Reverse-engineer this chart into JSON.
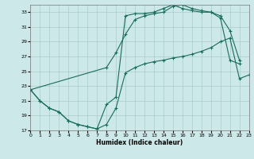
{
  "xlabel": "Humidex (Indice chaleur)",
  "bg_color": "#cce8e8",
  "grid_color": "#aacccc",
  "line_color": "#1a6b5a",
  "xlim": [
    0,
    23
  ],
  "ylim": [
    17,
    34
  ],
  "xticks": [
    0,
    1,
    2,
    3,
    4,
    5,
    6,
    7,
    8,
    9,
    10,
    11,
    12,
    13,
    14,
    15,
    16,
    17,
    18,
    19,
    20,
    21,
    22,
    23
  ],
  "yticks": [
    17,
    19,
    21,
    23,
    25,
    27,
    29,
    31,
    33
  ],
  "line1_x": [
    0,
    1,
    2,
    3,
    4,
    5,
    6,
    7,
    8,
    9,
    10,
    11,
    12,
    13,
    14,
    15,
    16,
    17,
    18,
    19,
    20,
    21,
    22,
    23
  ],
  "line1_y": [
    22.5,
    21.0,
    20.0,
    19.5,
    18.3,
    17.8,
    17.5,
    17.2,
    17.8,
    20.0,
    24.8,
    25.5,
    26.0,
    26.3,
    26.5,
    26.8,
    27.0,
    27.3,
    27.7,
    28.2,
    29.0,
    29.5,
    24.0,
    24.5
  ],
  "line2_x": [
    0,
    1,
    2,
    3,
    4,
    5,
    6,
    7,
    8,
    9,
    10,
    11,
    12,
    13,
    14,
    15,
    16,
    17,
    18,
    19,
    20,
    21,
    22
  ],
  "line2_y": [
    22.5,
    21.0,
    20.0,
    19.5,
    18.3,
    17.8,
    17.5,
    17.2,
    20.5,
    21.5,
    32.5,
    32.8,
    32.8,
    33.0,
    33.5,
    34.0,
    33.5,
    33.2,
    33.0,
    33.0,
    32.2,
    26.5,
    26.0
  ],
  "line3_x": [
    0,
    8,
    9,
    10,
    11,
    12,
    13,
    14,
    15,
    16,
    17,
    18,
    19,
    20,
    21,
    22
  ],
  "line3_y": [
    22.5,
    25.5,
    27.5,
    30.0,
    32.0,
    32.5,
    32.8,
    33.0,
    33.8,
    34.0,
    33.5,
    33.2,
    33.0,
    32.5,
    30.5,
    26.5
  ]
}
